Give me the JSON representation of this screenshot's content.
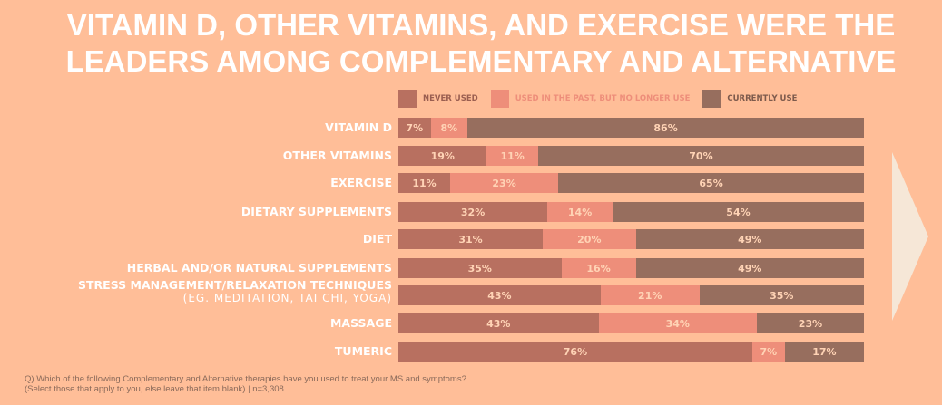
{
  "title_lines": [
    "Vitamin D, other vitamins, and exercise were the",
    "leaders among complementary and alternative"
  ],
  "note_lines": [
    "Q) Which of the following Complementary and Alternative therapies have you used to treat your MS and symptoms?",
    "(Select those that apply to you, else leave that item blank) | n=3,308"
  ],
  "colors": {
    "background": "#FFBE98",
    "never": "#B87060",
    "past": "#EE8E7A",
    "current": "#976E5E",
    "arrow": "#F6E7D7"
  },
  "chart_data": {
    "type": "bar",
    "orientation": "horizontal",
    "stacked": true,
    "legend_placement": "top",
    "series": [
      {
        "name": "NEVER USED",
        "values": [
          7,
          19,
          11,
          32,
          31,
          35,
          43,
          43,
          76
        ]
      },
      {
        "name": "USED IN THE PAST, BUT NO LONGER USE",
        "values": [
          8,
          11,
          23,
          14,
          20,
          16,
          21,
          34,
          7
        ]
      },
      {
        "name": "CURRENTLY USE",
        "values": [
          86,
          70,
          65,
          54,
          49,
          49,
          35,
          23,
          17
        ]
      }
    ],
    "categories": [
      "VITAMIN D",
      "OTHER VITAMINS",
      "EXERCISE",
      "DIETARY SUPPLEMENTS",
      "DIET",
      "HERBAL AND/OR NATURAL SUPPLEMENTS",
      "STRESS MANAGEMENT/RELAXATION TECHNIQUES",
      "MASSAGE",
      "TUMERIC"
    ],
    "category_sublabels": {
      "6": "(EG. MEDITATION, TAI CHI, YOGA)"
    }
  }
}
